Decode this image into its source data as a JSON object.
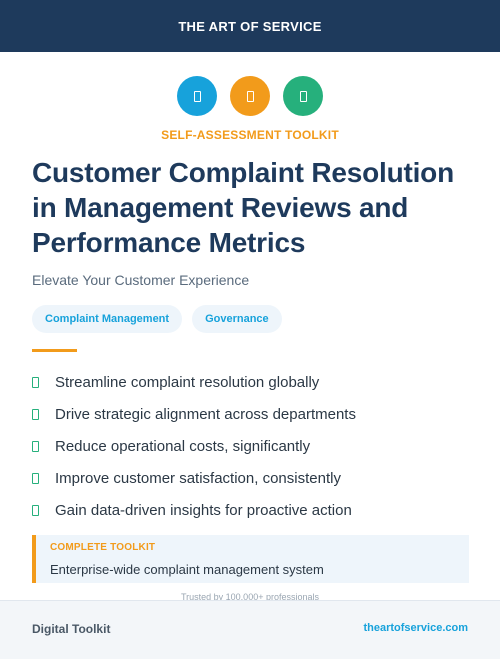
{
  "header": {
    "brand": "THE ART OF SERVICE"
  },
  "icons": [
    {
      "name": "feature-icon-1",
      "color": "#17a2db"
    },
    {
      "name": "feature-icon-2",
      "color": "#f29b1b"
    },
    {
      "name": "feature-icon-3",
      "color": "#26b07c"
    }
  ],
  "hero": {
    "kicker": "SELF-ASSESSMENT TOOLKIT",
    "title": "Customer Complaint Resolution in Management Reviews and Performance Metrics",
    "subtitle": "Elevate Your Customer Experience",
    "tags": [
      "Complaint Management",
      "Governance"
    ]
  },
  "benefits": [
    "Streamline complaint resolution globally",
    "Drive strategic alignment across departments",
    "Reduce operational costs, significantly",
    "Improve customer satisfaction, consistently",
    "Gain data-driven insights for proactive action"
  ],
  "toolkit": {
    "label": "COMPLETE TOOLKIT",
    "description": "Enterprise-wide complaint management system"
  },
  "trusted": "Trusted by 100,000+ professionals",
  "footer": {
    "left": "Digital Toolkit",
    "right": "theartofservice.com"
  },
  "colors": {
    "navy": "#1e3a5c",
    "blue": "#17a2db",
    "orange": "#f29b1b",
    "green": "#26b07c"
  }
}
